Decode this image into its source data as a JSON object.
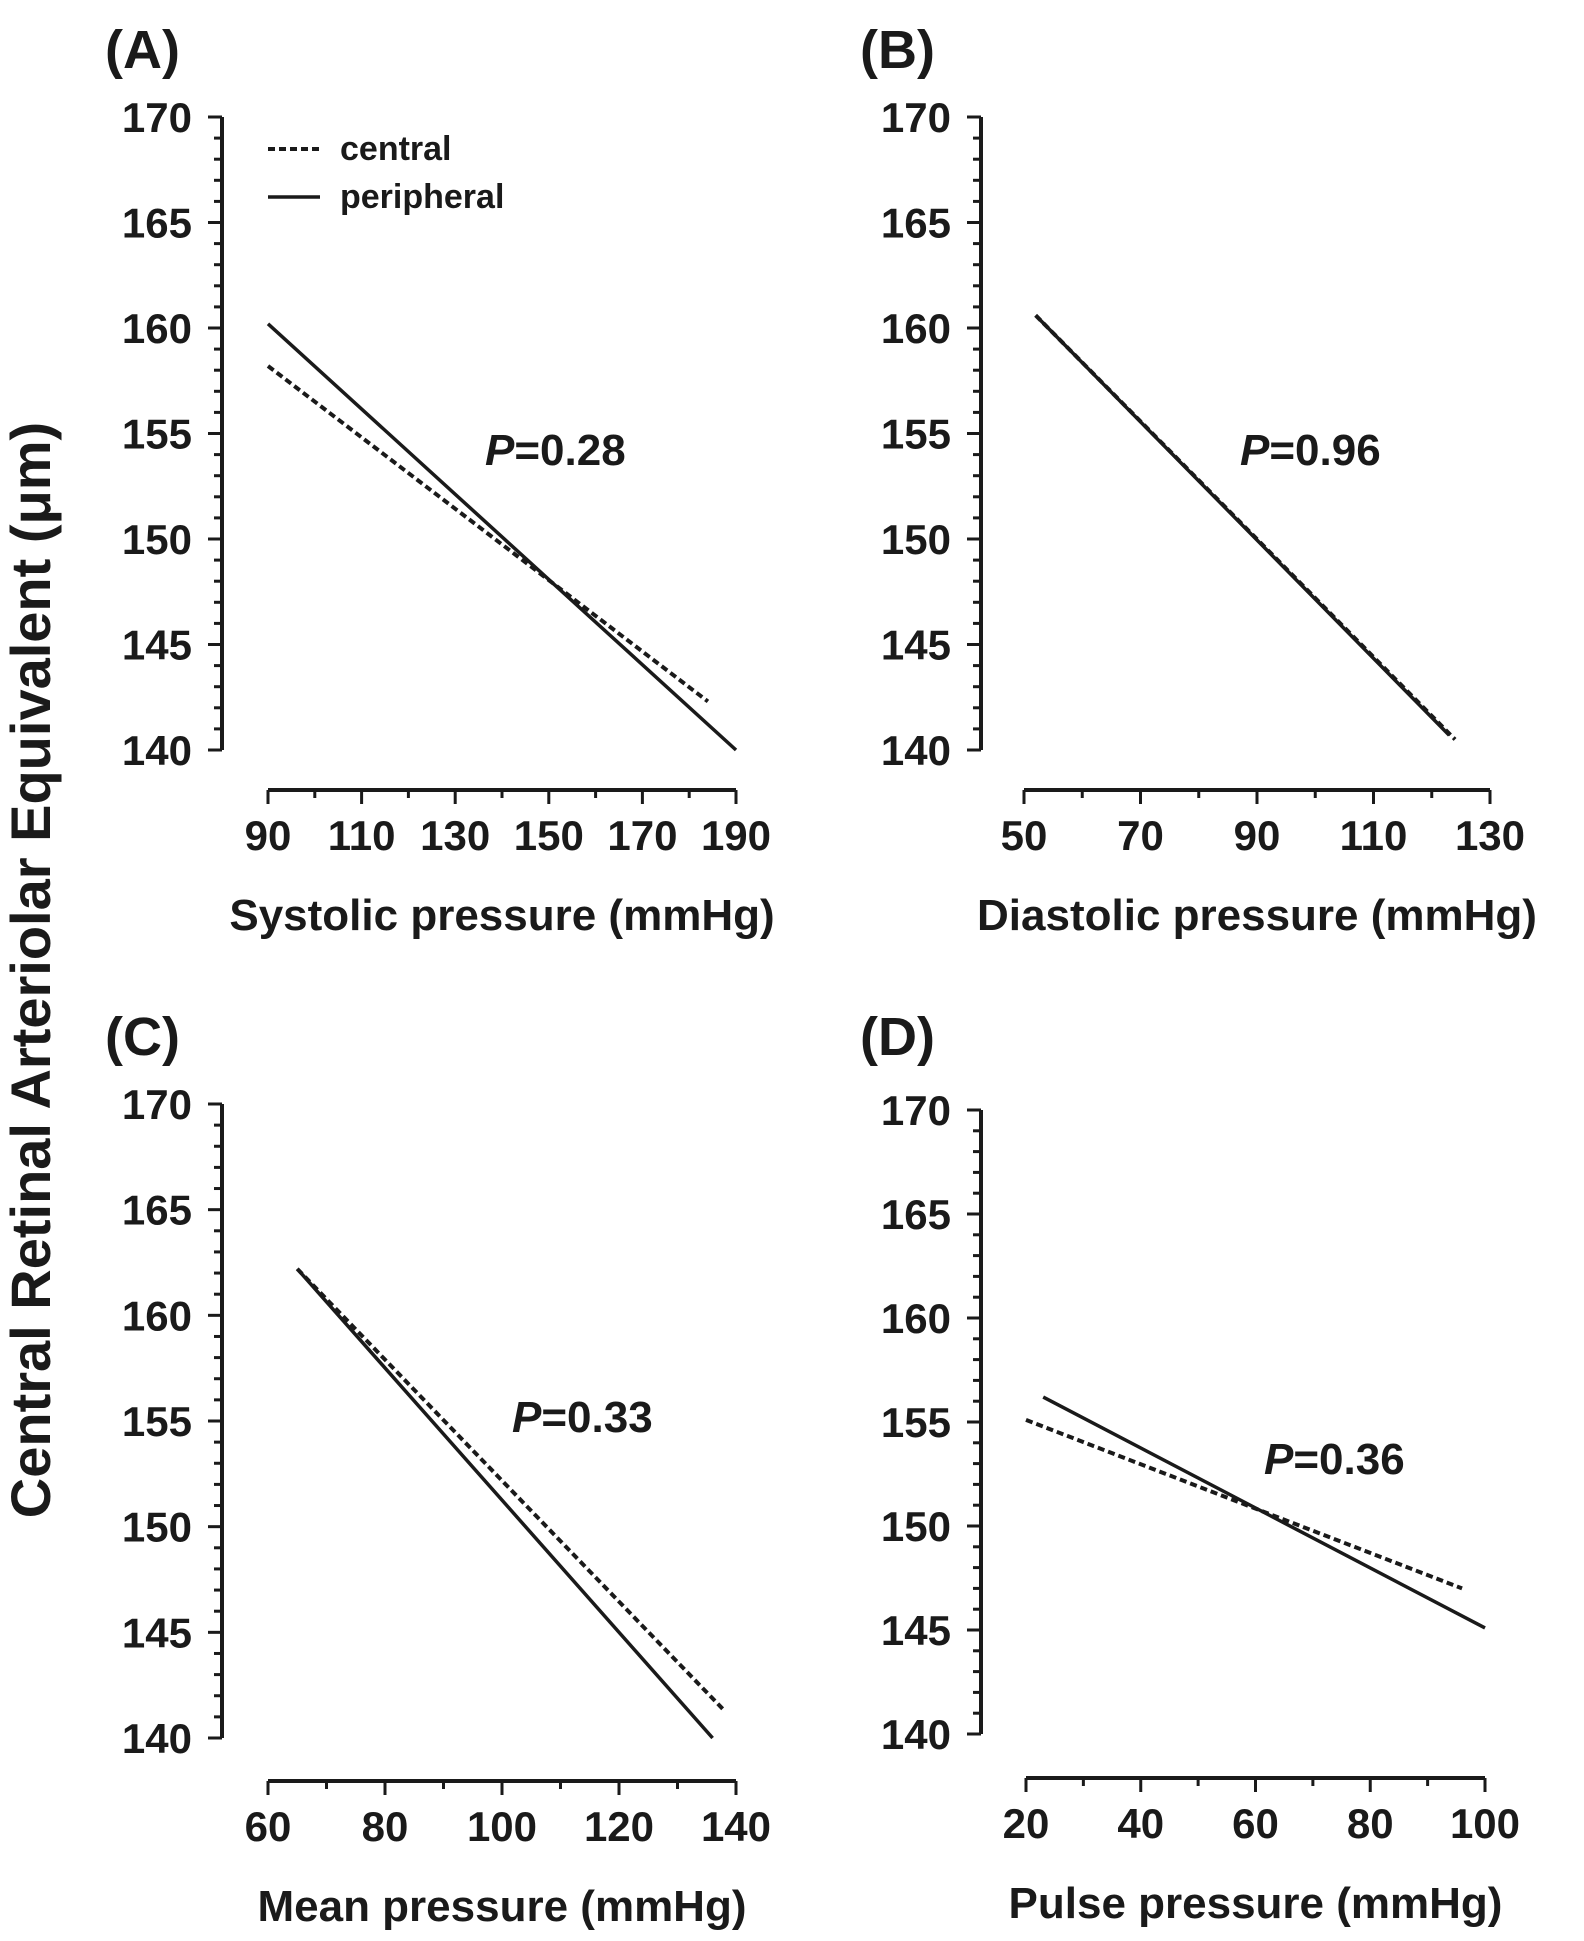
{
  "ylabel": "Central Retinal Arteriolar Equivalent (μm)",
  "legend": {
    "central": "central",
    "peripheral": "peripheral"
  },
  "chart_data": [
    {
      "type": "line",
      "panel": "(A)",
      "xlabel": "Systolic pressure (mmHg)",
      "xticks": [
        90,
        110,
        130,
        150,
        170,
        190
      ],
      "xlim": [
        90,
        190
      ],
      "ylim": [
        140,
        170
      ],
      "yticks": [
        140,
        145,
        150,
        155,
        160,
        165,
        170
      ],
      "p_label": "P",
      "p_value": "=0.28",
      "series": [
        {
          "name": "central",
          "style": "dashed",
          "x": [
            90,
            184
          ],
          "y": [
            158.2,
            142.3
          ]
        },
        {
          "name": "peripheral",
          "style": "solid",
          "x": [
            90,
            190
          ],
          "y": [
            160.2,
            140.0
          ]
        }
      ]
    },
    {
      "type": "line",
      "panel": "(B)",
      "xlabel": "Diastolic pressure (mmHg)",
      "xticks": [
        50,
        70,
        90,
        110,
        130
      ],
      "xlim": [
        50,
        130
      ],
      "ylim": [
        140,
        170
      ],
      "yticks": [
        140,
        145,
        150,
        155,
        160,
        165,
        170
      ],
      "p_label": "P",
      "p_value": "=0.96",
      "series": [
        {
          "name": "central",
          "style": "dashed",
          "x": [
            52,
            124
          ],
          "y": [
            160.6,
            140.5
          ]
        },
        {
          "name": "peripheral",
          "style": "solid",
          "x": [
            52,
            123
          ],
          "y": [
            160.6,
            140.7
          ]
        }
      ]
    },
    {
      "type": "line",
      "panel": "(C)",
      "xlabel": "Mean pressure (mmHg)",
      "xticks": [
        60,
        80,
        100,
        120,
        140
      ],
      "xlim": [
        60,
        140
      ],
      "ylim": [
        140,
        170
      ],
      "yticks": [
        140,
        145,
        150,
        155,
        160,
        165,
        170
      ],
      "p_label": "P",
      "p_value": "=0.33",
      "series": [
        {
          "name": "central",
          "style": "dashed",
          "x": [
            65,
            138
          ],
          "y": [
            162.2,
            141.3
          ]
        },
        {
          "name": "peripheral",
          "style": "solid",
          "x": [
            65,
            136
          ],
          "y": [
            162.2,
            140.0
          ]
        }
      ]
    },
    {
      "type": "line",
      "panel": "(D)",
      "xlabel": "Pulse pressure (mmHg)",
      "xticks": [
        20,
        40,
        60,
        80,
        100
      ],
      "xlim": [
        20,
        100
      ],
      "ylim": [
        140,
        170
      ],
      "yticks": [
        140,
        145,
        150,
        155,
        160,
        165,
        170
      ],
      "p_label": "P",
      "p_value": "=0.36",
      "series": [
        {
          "name": "central",
          "style": "dashed",
          "x": [
            20,
            96
          ],
          "y": [
            155.1,
            147.0
          ]
        },
        {
          "name": "peripheral",
          "style": "solid",
          "x": [
            23,
            100
          ],
          "y": [
            156.2,
            145.1
          ]
        }
      ]
    }
  ]
}
